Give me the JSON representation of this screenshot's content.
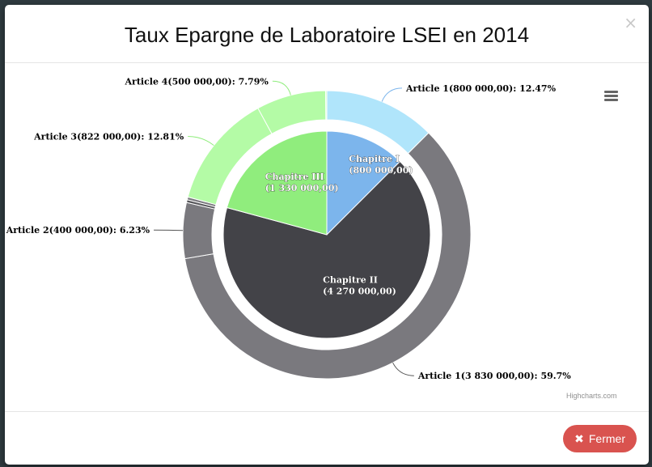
{
  "modal": {
    "title": "Taux Epargne de Laboratoire LSEI en 2014",
    "close_icon": "close-icon",
    "close_button_label": "Fermer",
    "close_button_icon": "times-icon"
  },
  "chart_menu": {
    "icon": "hamburger-menu-icon"
  },
  "credit": "Highcharts.com",
  "chart_data": {
    "type": "pie",
    "title": "Taux Epargne de Laboratoire LSEI en 2014",
    "inner": [
      {
        "label": "Chapitre I",
        "value_label": "(800 000,00)",
        "value": 800000,
        "color": "#7cb5ec"
      },
      {
        "label": "Chapitre II",
        "value_label": "(4 270 000,00)",
        "value": 4270000,
        "color": "#434348"
      },
      {
        "label": "Chapitre III",
        "value_label": "(1 330 000,00)",
        "value": 1330000,
        "color": "#90ed7d"
      }
    ],
    "outer": [
      {
        "label": "Article 1(800 000,00): 12.47%",
        "value": 800000,
        "percent": 12.47,
        "color": "#b0e5fb",
        "labeled": true
      },
      {
        "label": "Article 1(3 830 000,00): 59.7%",
        "value": 3830000,
        "percent": 59.7,
        "color": "#7a797e",
        "labeled": true
      },
      {
        "label": "Article 2(400 000,00): 6.23%",
        "value": 400000,
        "percent": 6.23,
        "color": "#7a797e",
        "labeled": true
      },
      {
        "label": "",
        "value": 20000,
        "percent": 0.31,
        "color": "#555559",
        "labeled": false
      },
      {
        "label": "",
        "value": 20000,
        "percent": 0.31,
        "color": "#7a797e",
        "labeled": false
      },
      {
        "label": "Article 3(822 000,00): 12.81%",
        "value": 822000,
        "percent": 12.81,
        "color": "#b4fba6",
        "labeled": true
      },
      {
        "label": "Article 4(500 000,00): 7.79%",
        "value": 500000,
        "percent": 7.79,
        "color": "#b4fba6",
        "labeled": true
      },
      {
        "label": "",
        "value": 8000,
        "percent": 0.12,
        "color": "#b4fba6",
        "labeled": false
      }
    ]
  }
}
